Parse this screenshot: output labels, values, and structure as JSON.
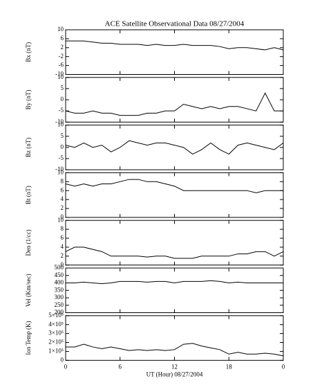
{
  "chart_data": [
    {
      "type": "line",
      "title": "ACE Satellite Observational Data   08/27/2004",
      "ylabel": "Bx (nT)",
      "color": "#000000",
      "x": [
        0,
        1,
        2,
        3,
        4,
        5,
        6,
        7,
        8,
        9,
        10,
        11,
        12,
        13,
        14,
        15,
        16,
        17,
        18,
        19,
        20,
        21,
        22,
        23,
        24
      ],
      "values": [
        5,
        5,
        5,
        4.5,
        4,
        4,
        3.5,
        3.5,
        3.5,
        3,
        3.5,
        3,
        3,
        3.5,
        3,
        3,
        3,
        2.5,
        1.5,
        2,
        2,
        1.5,
        1,
        2,
        1
      ],
      "xlim": [
        0,
        24
      ],
      "xticks": [
        0,
        6,
        12,
        18,
        {
          "value": 24,
          "label": "0"
        }
      ],
      "ylim": [
        -10,
        10
      ],
      "yticks": [
        -10,
        -6,
        -2,
        2,
        6,
        10
      ]
    },
    {
      "type": "line",
      "ylabel": "By (nT)",
      "color": "#000000",
      "x": [
        0,
        1,
        2,
        3,
        4,
        5,
        6,
        7,
        8,
        9,
        10,
        11,
        12,
        13,
        14,
        15,
        16,
        17,
        18,
        19,
        20,
        21,
        22,
        23,
        24
      ],
      "values": [
        -5,
        -6,
        -6,
        -5,
        -6,
        -6,
        -7,
        -7,
        -7,
        -6,
        -6,
        -5,
        -5,
        -2,
        -3,
        -4,
        -3,
        -4,
        -3,
        -3,
        -4,
        -5,
        3,
        -5,
        -5
      ],
      "xlim": [
        0,
        24
      ],
      "xticks": [
        0,
        6,
        12,
        18,
        {
          "value": 24,
          "label": "0"
        }
      ],
      "ylim": [
        -10,
        10
      ],
      "yticks": [
        -10,
        -5,
        0,
        5,
        10
      ]
    },
    {
      "type": "line",
      "ylabel": "Bz (nT)",
      "color": "#000000",
      "x": [
        0,
        1,
        2,
        3,
        4,
        5,
        6,
        7,
        8,
        9,
        10,
        11,
        12,
        13,
        14,
        15,
        16,
        17,
        18,
        19,
        20,
        21,
        22,
        23,
        24
      ],
      "values": [
        1,
        0,
        2,
        0,
        1,
        -2,
        0,
        3,
        2,
        1,
        2,
        2,
        1,
        0,
        -3,
        -1,
        2,
        -1,
        -3,
        1,
        2,
        1,
        0,
        -1,
        2
      ],
      "xlim": [
        0,
        24
      ],
      "xticks": [
        0,
        6,
        12,
        18,
        {
          "value": 24,
          "label": "0"
        }
      ],
      "ylim": [
        -10,
        10
      ],
      "yticks": [
        -10,
        -5,
        0,
        5,
        10
      ]
    },
    {
      "type": "line",
      "ylabel": "Bt (nT)",
      "color": "#000000",
      "x": [
        0,
        1,
        2,
        3,
        4,
        5,
        6,
        7,
        8,
        9,
        10,
        11,
        12,
        13,
        14,
        15,
        16,
        17,
        18,
        19,
        20,
        21,
        22,
        23,
        24
      ],
      "values": [
        7.5,
        7,
        7.5,
        7,
        7.5,
        7.5,
        8,
        8.5,
        8.5,
        8,
        8,
        7.5,
        7,
        6,
        6,
        6,
        6,
        6,
        6,
        6,
        6,
        5.5,
        6,
        6,
        6
      ],
      "xlim": [
        0,
        24
      ],
      "xticks": [
        0,
        6,
        12,
        18,
        {
          "value": 24,
          "label": "0"
        }
      ],
      "ylim": [
        0,
        10
      ],
      "yticks": [
        0,
        2,
        4,
        6,
        8,
        10
      ]
    },
    {
      "type": "line",
      "ylabel": "Den (1/cc)",
      "color": "#000000",
      "x": [
        0,
        1,
        2,
        3,
        4,
        5,
        6,
        7,
        8,
        9,
        10,
        11,
        12,
        13,
        14,
        15,
        16,
        17,
        18,
        19,
        20,
        21,
        22,
        23,
        24
      ],
      "values": [
        3,
        4,
        4,
        3.5,
        3,
        2,
        2,
        2,
        2,
        1.8,
        2,
        2,
        1.5,
        1.5,
        1.5,
        2,
        2,
        2,
        2,
        2.5,
        2.5,
        3,
        3,
        2,
        3
      ],
      "xlim": [
        0,
        24
      ],
      "xticks": [
        0,
        6,
        12,
        18,
        {
          "value": 24,
          "label": "0"
        }
      ],
      "ylim": [
        0,
        10
      ],
      "yticks": [
        0,
        2,
        4,
        6,
        8,
        10
      ]
    },
    {
      "type": "line",
      "ylabel": "Vel (Km/sec)",
      "color": "#000000",
      "x": [
        0,
        1,
        2,
        3,
        4,
        5,
        6,
        7,
        8,
        9,
        10,
        11,
        12,
        13,
        14,
        15,
        16,
        17,
        18,
        19,
        20,
        21,
        22,
        23,
        24
      ],
      "values": [
        400,
        400,
        405,
        400,
        395,
        400,
        410,
        410,
        410,
        405,
        410,
        410,
        400,
        410,
        410,
        410,
        415,
        410,
        400,
        405,
        400,
        400,
        400,
        400,
        400
      ],
      "xlim": [
        0,
        24
      ],
      "xticks": [
        0,
        6,
        12,
        18,
        {
          "value": 24,
          "label": "0"
        }
      ],
      "ylim": [
        200,
        500
      ],
      "yticks": [
        200,
        250,
        300,
        350,
        400,
        450,
        500
      ]
    },
    {
      "type": "line",
      "ylabel": "Ion Temp (K)",
      "xlabel": "UT (Hour)   08/27/2004",
      "color": "#000000",
      "x": [
        0,
        1,
        2,
        3,
        4,
        5,
        6,
        7,
        8,
        9,
        10,
        11,
        12,
        13,
        14,
        15,
        16,
        17,
        18,
        19,
        20,
        21,
        22,
        23,
        24
      ],
      "values": [
        150000,
        150000,
        180000,
        150000,
        130000,
        150000,
        130000,
        110000,
        120000,
        110000,
        120000,
        110000,
        120000,
        180000,
        190000,
        160000,
        140000,
        120000,
        70000,
        90000,
        70000,
        70000,
        80000,
        70000,
        50000
      ],
      "xlim": [
        0,
        24
      ],
      "xticks": [
        0,
        6,
        12,
        18,
        {
          "value": 24,
          "label": "0"
        }
      ],
      "ylim": [
        0,
        500000
      ],
      "yticks": [
        0,
        {
          "value": 100000,
          "label": "1×10⁵"
        },
        {
          "value": 200000,
          "label": "2×10⁵"
        },
        {
          "value": 300000,
          "label": "3×10⁵"
        },
        {
          "value": 400000,
          "label": "4×10⁵"
        },
        {
          "value": 500000,
          "label": "5×10⁵"
        }
      ]
    }
  ]
}
